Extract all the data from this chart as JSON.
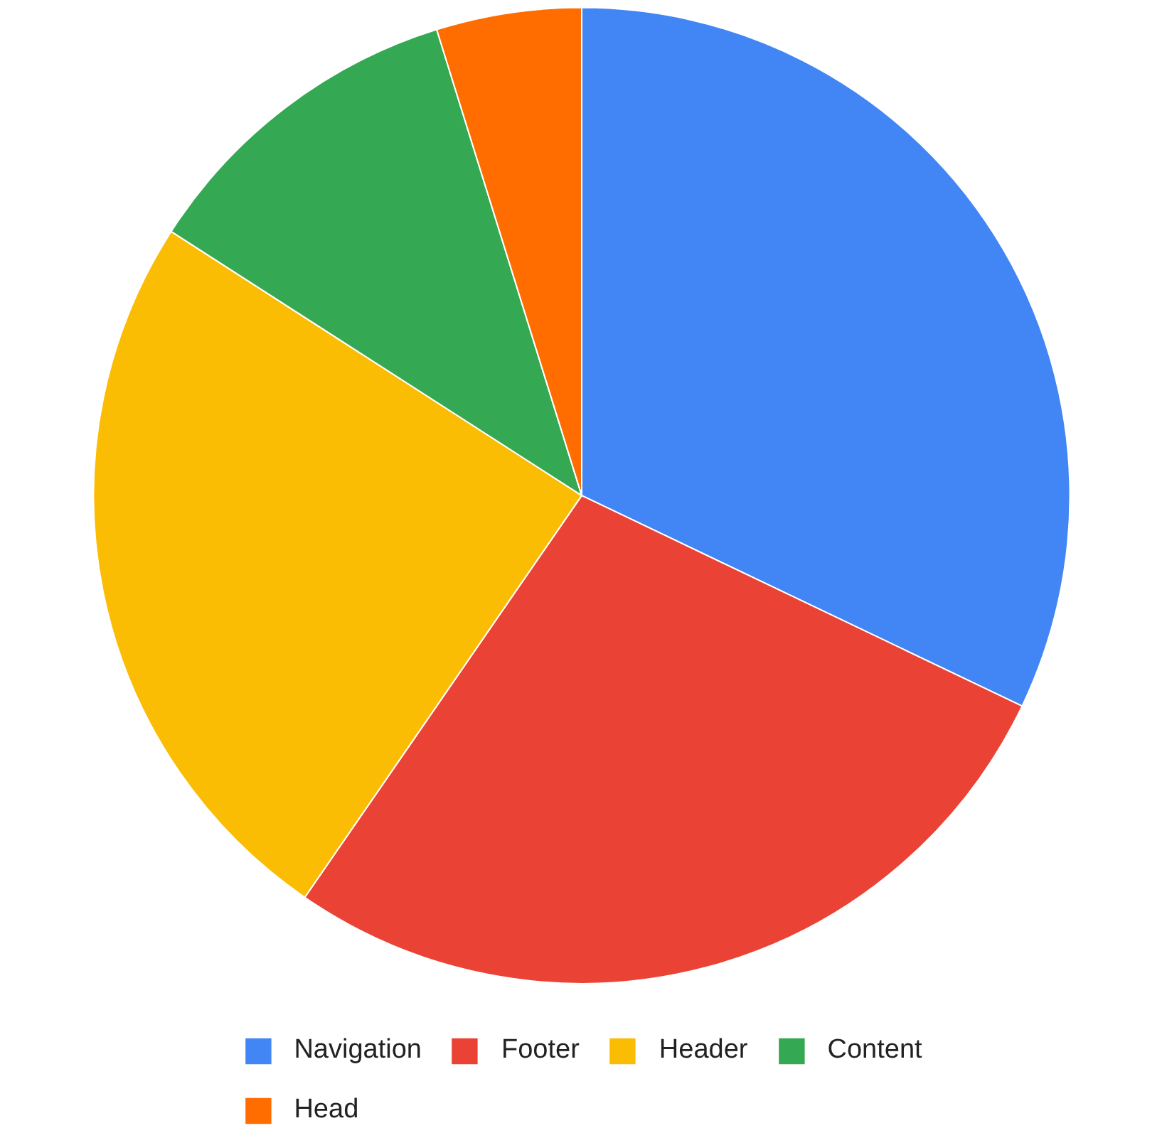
{
  "chart_data": {
    "type": "pie",
    "categories": [
      "Navigation",
      "Footer",
      "Header",
      "Content",
      "Head"
    ],
    "values": [
      32.1,
      27.5,
      24.5,
      11.1,
      4.8
    ],
    "colors": [
      "#4285f4",
      "#ea4335",
      "#fbbc04",
      "#34a853",
      "#ff6d01"
    ],
    "legend": "bottom"
  }
}
